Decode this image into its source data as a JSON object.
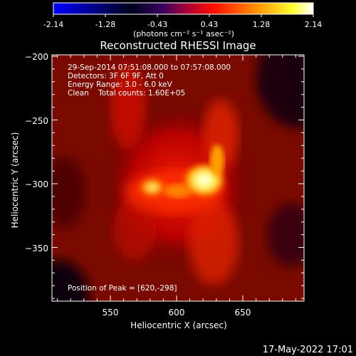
{
  "colorbar": {
    "ticks": [
      "-2.14",
      "-1.28",
      "-0.43",
      "0.43",
      "1.28",
      "2.14"
    ],
    "unit_label": "(photons cm⁻² s⁻¹ asec⁻²)",
    "colors": [
      "#0000ff",
      "#000000",
      "#7f00ff",
      "#ff0000",
      "#ffa500",
      "#ffff00",
      "#ffffff"
    ]
  },
  "plot": {
    "title": "Reconstructed RHESSI Image",
    "xlabel": "Heliocentric X (arcsec)",
    "ylabel": "Heliocentric Y (arcsec)",
    "x_ticks": [
      "550",
      "600",
      "650"
    ],
    "y_ticks": [
      "−200",
      "−250",
      "−300",
      "−350"
    ],
    "info_lines": [
      "29-Sep-2014 07:51:08.000 to 07:57:08.000",
      "Detectors: 3F 6F 9F, Att 0",
      "Energy Range: 3.0 - 6.0 keV",
      "Clean    Total counts: 1.60E+05"
    ],
    "peak_text": "Position of Peak = [620,-298]"
  },
  "footer": {
    "timestamp": "17-May-2022 17:01"
  }
}
